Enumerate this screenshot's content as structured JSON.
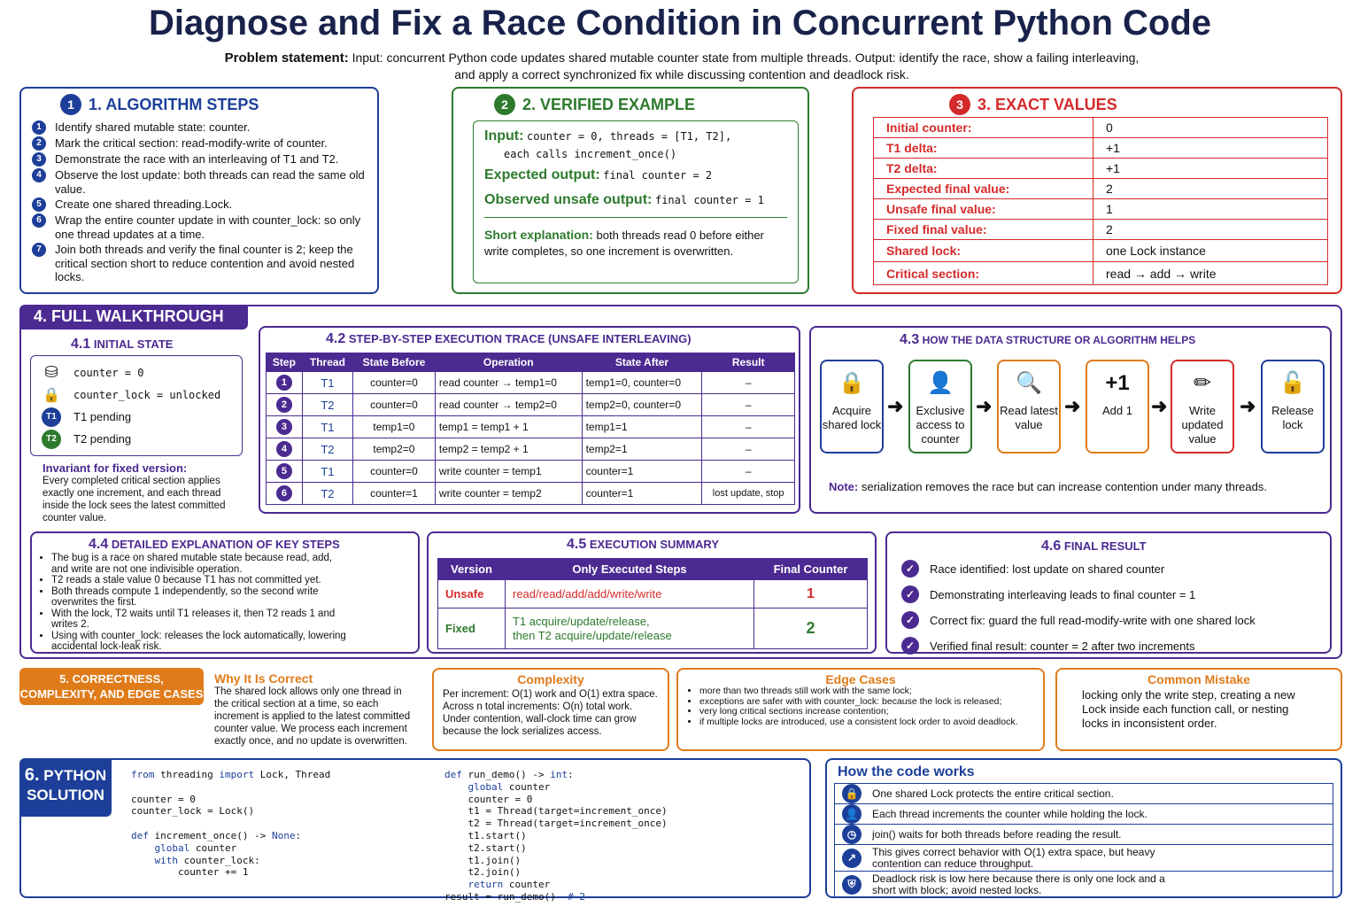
{
  "title": "Diagnose and Fix a Race Condition in Concurrent Python Code",
  "problem": {
    "label": "Problem statement:",
    "line1": "Input: concurrent Python code updates shared mutable counter state from multiple threads. Output: identify the race, show a failing interleaving,",
    "line2": "and apply a correct synchronized fix while discussing contention and deadlock risk."
  },
  "s1": {
    "num": "1",
    "title": "1. ALGORITHM STEPS",
    "steps": [
      {
        "n": "1",
        "text": "Identify shared mutable state: counter."
      },
      {
        "n": "2",
        "text": "Mark the critical section: read-modify-write of counter."
      },
      {
        "n": "3",
        "text": "Demonstrate the race with an interleaving of T1 and T2."
      },
      {
        "n": "4",
        "text": "Observe the lost update: both threads can read the same old value."
      },
      {
        "n": "5",
        "text": "Create one shared threading.Lock."
      },
      {
        "n": "6",
        "text": "Wrap the entire counter update in with counter_lock: so only one thread updates at a time."
      },
      {
        "n": "7",
        "text": "Join both threads and verify the final counter is 2; keep the critical section short to reduce contention and avoid nested locks."
      }
    ]
  },
  "s2": {
    "num": "2",
    "title": "2. VERIFIED EXAMPLE",
    "input_label": "Input:",
    "input_code": "counter = 0, threads = [T1, T2],",
    "input_code2": "each calls increment_once()",
    "exp_label": "Expected output:",
    "exp_code": "final counter = 2",
    "obs_label": "Observed unsafe output:",
    "obs_code": "final counter = 1",
    "short_label": "Short explanation:",
    "short_text": "both threads read 0 before either write completes, so one increment is overwritten."
  },
  "s3": {
    "num": "3",
    "title": "3. EXACT VALUES",
    "rows": [
      {
        "k": "Initial counter:",
        "v": "0"
      },
      {
        "k": "T1 delta:",
        "v": "+1"
      },
      {
        "k": "T2 delta:",
        "v": "+1"
      },
      {
        "k": "Expected final value:",
        "v": "2"
      },
      {
        "k": "Unsafe final value:",
        "v": "1"
      },
      {
        "k": "Fixed final value:",
        "v": "2"
      },
      {
        "k": "Shared lock:",
        "v": "one Lock instance"
      },
      {
        "k": "Critical section:",
        "v": "read → add → write"
      }
    ]
  },
  "s4": {
    "title": "4. FULL WALKTHROUGH",
    "s41": {
      "num": "4.1",
      "title": "INITIAL STATE",
      "items": [
        {
          "icon": "database-icon",
          "text": "counter = 0"
        },
        {
          "icon": "lock-icon",
          "text": "counter_lock = unlocked"
        },
        {
          "icon": "T1",
          "text": "T1 pending"
        },
        {
          "icon": "T2",
          "text": "T2 pending"
        }
      ],
      "inv_title": "Invariant for fixed version:",
      "inv_text": "Every completed critical section applies exactly one increment, and each thread inside the lock sees the latest committed counter value."
    },
    "s42": {
      "num": "4.2",
      "title": "STEP-BY-STEP EXECUTION TRACE (UNSAFE INTERLEAVING)",
      "headers": [
        "Step",
        "Thread",
        "State Before",
        "Operation",
        "State After",
        "Result"
      ],
      "rows": [
        [
          "1",
          "T1",
          "counter=0",
          "read counter → temp1=0",
          "temp1=0, counter=0",
          "–"
        ],
        [
          "2",
          "T2",
          "counter=0",
          "read counter → temp2=0",
          "temp2=0, counter=0",
          "–"
        ],
        [
          "3",
          "T1",
          "temp1=0",
          "temp1 = temp1 + 1",
          "temp1=1",
          "–"
        ],
        [
          "4",
          "T2",
          "temp2=0",
          "temp2 = temp2 + 1",
          "temp2=1",
          "–"
        ],
        [
          "5",
          "T1",
          "counter=0",
          "write counter = temp1",
          "counter=1",
          "–"
        ],
        [
          "6",
          "T2",
          "counter=1",
          "write counter = temp2",
          "counter=1",
          "lost update, stop"
        ]
      ]
    },
    "s43": {
      "num": "4.3",
      "title": "HOW THE DATA STRUCTURE OR ALGORITHM HELPS",
      "steps": [
        "Acquire shared lock",
        "Exclusive access to counter",
        "Read latest value",
        "Add 1",
        "Write updated value",
        "Release lock"
      ],
      "plus": "+1",
      "note_label": "Note:",
      "note_text": "serialization removes the race but can increase contention under many threads."
    },
    "s44": {
      "num": "4.4",
      "title": "DETAILED EXPLANATION OF KEY STEPS",
      "bullets": [
        "The bug is a race on shared mutable state because read, add, and write are not one indivisible operation.",
        "T2 reads a stale value 0 because T1 has not committed yet.",
        "Both threads compute 1 independently, so the second write overwrites the first.",
        "With the lock, T2 waits until T1 releases it, then T2 reads 1 and writes 2.",
        "Using with counter_lock: releases the lock automatically, lowering accidental lock-leak risk."
      ]
    },
    "s45": {
      "num": "4.5",
      "title": "EXECUTION SUMMARY",
      "headers": [
        "Version",
        "Only Executed Steps",
        "Final Counter"
      ],
      "unsafe": {
        "v": "Unsafe",
        "s": "read/read/add/add/write/write",
        "f": "1"
      },
      "fixed": {
        "v": "Fixed",
        "s1": "T1 acquire/update/release,",
        "s2": "then T2 acquire/update/release",
        "f": "2"
      }
    },
    "s46": {
      "num": "4.6",
      "title": "FINAL RESULT",
      "items": [
        "Race identified: lost update on shared counter",
        "Demonstrating interleaving leads to final counter = 1",
        "Correct fix: guard the full read-modify-write with one shared lock",
        "Verified final result: counter = 2 after two increments"
      ]
    }
  },
  "s5": {
    "title": "5. CORRECTNESS, COMPLEXITY, AND EDGE CASES",
    "why_title": "Why It Is Correct",
    "why_text": "The shared lock allows only one thread in the critical section at a time, so each increment is applied to the latest committed counter value. We process each increment exactly once, and no update is overwritten.",
    "cx_title": "Complexity",
    "cx_text": "Per increment: O(1) work and O(1) extra space. Across n total increments: O(n) total work. Under contention, wall-clock time can grow because the lock serializes access.",
    "edge_title": "Edge Cases",
    "edges": [
      "more than two threads still work with the same lock;",
      "exceptions are safer with with counter_lock: because the lock is released;",
      "very long critical sections increase contention;",
      "if multiple locks are introduced, use a consistent lock order to avoid deadlock."
    ],
    "mist_title": "Common Mistake",
    "mist_text": "locking only the write step, creating a new Lock inside each function call, or nesting locks in inconsistent order."
  },
  "s6": {
    "title_num": "6.",
    "title1": "PYTHON",
    "title2": "SOLUTION",
    "how_title": "How the code works",
    "how": [
      {
        "icon": "lock-icon",
        "text": "One shared Lock protects the entire critical section."
      },
      {
        "icon": "user-icon",
        "text": "Each thread increments the counter while holding the lock."
      },
      {
        "icon": "clock-icon",
        "text": "join() waits for both threads before reading the result."
      },
      {
        "icon": "chart-icon",
        "text": "This gives correct behavior with O(1) extra space, but heavy contention can reduce throughput."
      },
      {
        "icon": "shield-icon",
        "text": "Deadlock risk is low here because there is only one lock and a short with block; avoid nested locks."
      }
    ]
  }
}
